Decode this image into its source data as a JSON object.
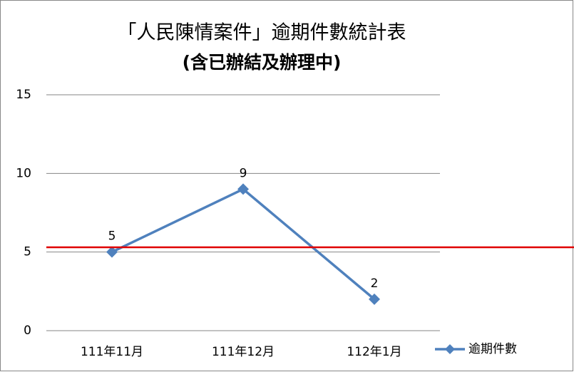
{
  "chart_data": {
    "type": "line",
    "title": [
      "「人民陳情案件」逾期件數統計表",
      "(含已辦結及辦理中)"
    ],
    "categories": [
      "111年11月",
      "111年12月",
      "112年1月"
    ],
    "series": [
      {
        "name": "逾期件數",
        "color": "#4f81bd",
        "values": [
          5,
          9,
          2
        ]
      }
    ],
    "ylim": [
      0,
      15
    ],
    "yticks": [
      0,
      5,
      10,
      15
    ],
    "grid": true,
    "reference_line": {
      "value": 5.3,
      "color": "#e00000"
    },
    "legend": "right"
  }
}
